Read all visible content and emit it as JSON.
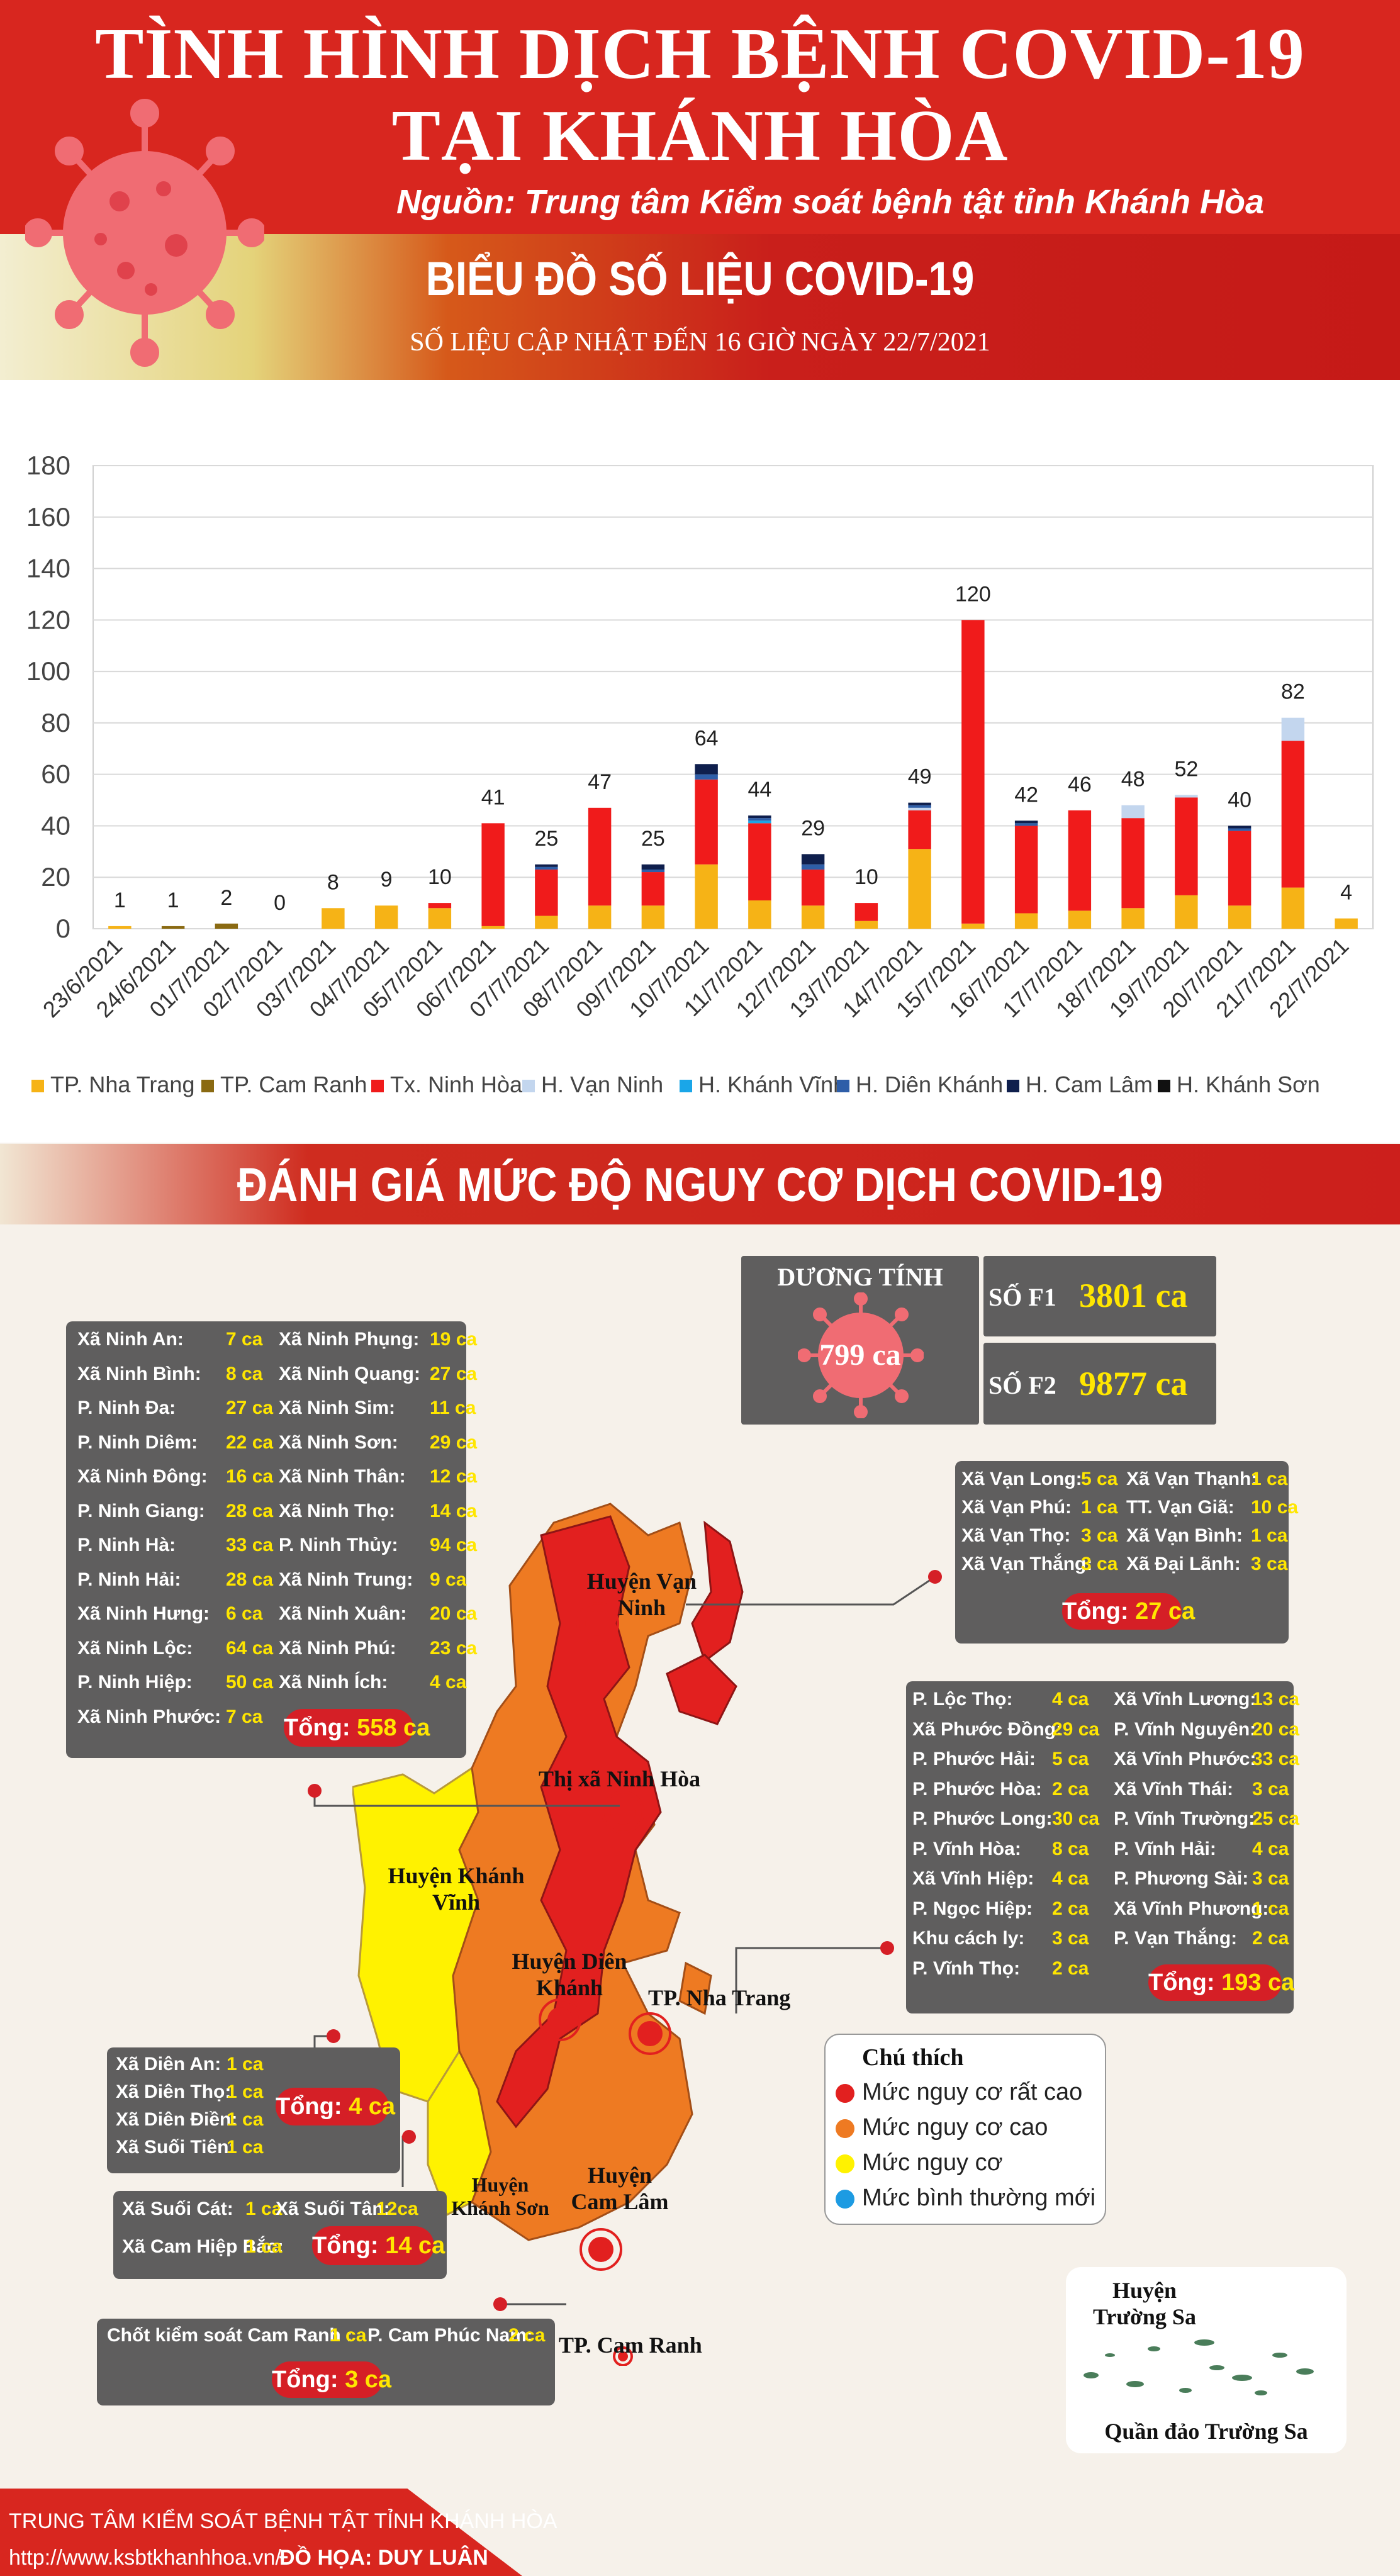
{
  "header": {
    "title_line1": "TÌNH HÌNH DỊCH BỆNH COVID-19",
    "title_line2": "TẠI KHÁNH HÒA",
    "source": "Nguồn: Trung tâm Kiểm soát bệnh tật tỉnh Khánh Hòa",
    "chart_heading": "BIỂU ĐỒ SỐ LIỆU COVID-19",
    "update_note": "SỐ LIỆU CẬP NHẬT ĐẾN 16 GIỜ NGÀY 22/7/2021"
  },
  "colors": {
    "nha_trang": "#f6b316",
    "cam_ranh": "#8a6a12",
    "ninh_hoa": "#f01b1b",
    "van_ninh": "#c3d6ee",
    "khanh_vinh": "#1aa6e8",
    "dien_khanh": "#2e5ea8",
    "cam_lam": "#0f1f4d",
    "khanh_son": "#111111",
    "very_high": "#e2201f",
    "high": "#ee7a22",
    "risk": "#fff200",
    "new_normal": "#1d9be2"
  },
  "chart_data": {
    "type": "bar",
    "stacked": true,
    "title": "BIỂU ĐỒ SỐ LIỆU COVID-19",
    "ylim": [
      0,
      180
    ],
    "yticks": [
      "0",
      "20",
      "40",
      "60",
      "80",
      "100",
      "120",
      "140",
      "160",
      "180"
    ],
    "grid": true,
    "legend_position": "bottom",
    "categories": [
      "23/6/2021",
      "24/6/2021",
      "01/7/2021",
      "02/7/2021",
      "03/7/2021",
      "04/7/2021",
      "05/7/2021",
      "06/7/2021",
      "07/7/2021",
      "08/7/2021",
      "09/7/2021",
      "10/7/2021",
      "11/7/2021",
      "12/7/2021",
      "13/7/2021",
      "14/7/2021",
      "15/7/2021",
      "16/7/2021",
      "17/7/2021",
      "18/7/2021",
      "19/7/2021",
      "20/7/2021",
      "21/7/2021",
      "22/7/2021"
    ],
    "totals": [
      "1",
      "1",
      "2",
      "0",
      "8",
      "9",
      "10",
      "41",
      "25",
      "47",
      "25",
      "64",
      "44",
      "29",
      "10",
      "49",
      "120",
      "42",
      "46",
      "48",
      "52",
      "40",
      "82",
      "4"
    ],
    "series": [
      {
        "name": "TP. Nha Trang",
        "color": "#f6b316",
        "values": [
          1,
          0,
          0,
          0,
          8,
          9,
          8,
          1,
          5,
          9,
          9,
          25,
          11,
          9,
          3,
          31,
          2,
          6,
          7,
          8,
          13,
          9,
          16,
          4
        ]
      },
      {
        "name": "TP. Cam Ranh",
        "color": "#8a6a12",
        "values": [
          0,
          1,
          2,
          0,
          0,
          0,
          0,
          0,
          0,
          0,
          0,
          0,
          0,
          0,
          0,
          0,
          0,
          0,
          0,
          0,
          0,
          0,
          0,
          0
        ]
      },
      {
        "name": "Tx. Ninh Hòa",
        "color": "#f01b1b",
        "values": [
          0,
          0,
          0,
          0,
          0,
          0,
          2,
          40,
          18,
          38,
          13,
          33,
          30,
          14,
          7,
          15,
          118,
          34,
          39,
          35,
          38,
          29,
          57,
          0
        ]
      },
      {
        "name": "H. Vạn Ninh",
        "color": "#c3d6ee",
        "values": [
          0,
          0,
          0,
          0,
          0,
          0,
          0,
          0,
          0,
          0,
          0,
          0,
          0,
          0,
          0,
          1,
          0,
          0,
          0,
          5,
          1,
          0,
          9,
          0
        ]
      },
      {
        "name": "H. Khánh Vĩnh",
        "color": "#1aa6e8",
        "values": [
          0,
          0,
          0,
          0,
          0,
          0,
          0,
          0,
          0,
          0,
          0,
          0,
          1,
          0,
          0,
          0,
          0,
          0,
          0,
          0,
          0,
          0,
          0,
          0
        ]
      },
      {
        "name": "H. Diên Khánh",
        "color": "#2e5ea8",
        "values": [
          0,
          0,
          0,
          0,
          0,
          0,
          0,
          0,
          1,
          0,
          1,
          2,
          1,
          2,
          0,
          1,
          0,
          1,
          0,
          0,
          0,
          1,
          0,
          0
        ]
      },
      {
        "name": "H. Cam Lâm",
        "color": "#0f1f4d",
        "values": [
          0,
          0,
          0,
          0,
          0,
          0,
          0,
          0,
          1,
          0,
          2,
          4,
          1,
          4,
          0,
          1,
          0,
          1,
          0,
          0,
          0,
          1,
          0,
          0
        ]
      },
      {
        "name": "H. Khánh Sơn",
        "color": "#111111",
        "values": [
          0,
          0,
          0,
          0,
          0,
          0,
          0,
          0,
          0,
          0,
          0,
          0,
          0,
          0,
          0,
          0,
          0,
          0,
          0,
          0,
          0,
          0,
          0,
          0
        ]
      }
    ]
  },
  "risk_section": {
    "heading": "ĐÁNH GIÁ MỨC ĐỘ NGUY CƠ DỊCH COVID-19",
    "positive_label": "DƯƠNG TÍNH",
    "positive_value": "799 ca",
    "f1_label": "SỐ F1",
    "f1_value": "3801 ca",
    "f2_label": "SỐ F2",
    "f2_value": "9877 ca",
    "ninh_hoa": {
      "total": "558 ca",
      "total_label": "Tổng:",
      "rows": [
        [
          "Xã Ninh An:",
          "7 ca",
          "Xã Ninh Phụng:",
          "19 ca"
        ],
        [
          "Xã Ninh Bình:",
          "8 ca",
          "Xã Ninh Quang:",
          "27 ca"
        ],
        [
          "P. Ninh Đa:",
          "27 ca",
          "Xã Ninh Sim:",
          "11 ca"
        ],
        [
          "P. Ninh Diêm:",
          "22 ca",
          "Xã Ninh Sơn:",
          "29 ca"
        ],
        [
          "Xã Ninh Đông:",
          "16 ca",
          "Xã Ninh Thân:",
          "12 ca"
        ],
        [
          "P. Ninh Giang:",
          "28 ca",
          "Xã Ninh Thọ:",
          "14 ca"
        ],
        [
          "P. Ninh Hà:",
          "33 ca",
          "P. Ninh Thủy:",
          "94 ca"
        ],
        [
          "P. Ninh Hải:",
          "28 ca",
          "Xã Ninh Trung:",
          "9 ca"
        ],
        [
          "Xã Ninh Hưng:",
          "6 ca",
          "Xã Ninh Xuân:",
          "20 ca"
        ],
        [
          "Xã Ninh Lộc:",
          "64 ca",
          "Xã Ninh Phú:",
          "23 ca"
        ],
        [
          "P. Ninh Hiệp:",
          "50 ca",
          "Xã Ninh Ích:",
          "4 ca"
        ],
        [
          "Xã Ninh Phước:",
          "7 ca",
          "",
          ""
        ]
      ]
    },
    "van_ninh": {
      "total": "27 ca",
      "total_label": "Tổng:",
      "rows": [
        [
          "Xã Vạn Long:",
          "5 ca",
          "Xã Vạn Thạnh:",
          "1 ca"
        ],
        [
          "Xã Vạn Phú:",
          "1 ca",
          "TT. Vạn Giã:",
          "10 ca"
        ],
        [
          "Xã Vạn Thọ:",
          "3 ca",
          "Xã Vạn Bình:",
          "1 ca"
        ],
        [
          "Xã Vạn Thắng:",
          "3 ca",
          "Xã Đại Lãnh:",
          "3 ca"
        ]
      ]
    },
    "nha_trang": {
      "total": "193 ca",
      "total_label": "Tổng:",
      "rows": [
        [
          "P. Lộc Thọ:",
          "4 ca",
          "Xã Vĩnh Lương:",
          "13 ca"
        ],
        [
          "Xã Phước Đồng:",
          "29 ca",
          "P. Vĩnh Nguyên:",
          "20 ca"
        ],
        [
          "P. Phước Hải:",
          "5 ca",
          "Xã Vĩnh Phước:",
          "33 ca"
        ],
        [
          "P. Phước Hòa:",
          "2 ca",
          "Xã Vĩnh Thái:",
          "3 ca"
        ],
        [
          "P. Phước Long:",
          "30 ca",
          "P. Vĩnh Trường:",
          "25 ca"
        ],
        [
          "P. Vĩnh Hòa:",
          "8 ca",
          "P. Vĩnh Hải:",
          "4 ca"
        ],
        [
          "Xã Vĩnh Hiệp:",
          "4 ca",
          "P. Phương Sài:",
          "3 ca"
        ],
        [
          "P. Ngọc Hiệp:",
          "2 ca",
          "Xã Vĩnh Phương:",
          "1 ca"
        ],
        [
          "Khu cách ly:",
          "3 ca",
          "P. Vạn Thắng:",
          "2 ca"
        ],
        [
          "P. Vĩnh Thọ:",
          "2 ca",
          "",
          ""
        ]
      ]
    },
    "dien_khanh": {
      "total": "4 ca",
      "total_label": "Tổng:",
      "rows": [
        [
          "Xã Diên An:",
          "1 ca"
        ],
        [
          "Xã Diên Thọ:",
          "1 ca"
        ],
        [
          "Xã Diên Điền:",
          "1 ca"
        ],
        [
          "Xã Suối Tiên:",
          "1 ca"
        ]
      ]
    },
    "cam_lam": {
      "total": "14 ca",
      "total_label": "Tổng:",
      "rows": [
        [
          "Xã Suối Cát:",
          "1 ca",
          "Xã Suối Tân:",
          "12ca"
        ],
        [
          "Xã Cam Hiệp Bắc:",
          "1 ca",
          "",
          ""
        ]
      ]
    },
    "cam_ranh": {
      "total": "3 ca",
      "total_label": "Tổng:",
      "rows": [
        [
          "Chốt kiểm soát Cam Ranh :",
          "1 ca",
          "P. Cam Phúc Nam:",
          "2 ca"
        ]
      ]
    },
    "map_labels": {
      "van_ninh": "Huyện Vạn Ninh",
      "ninh_hoa": "Thị xã Ninh Hòa",
      "khanh_vinh": "Huyện Khánh Vĩnh",
      "dien_khanh": "Huyện Diên Khánh",
      "nha_trang": "TP. Nha Trang",
      "khanh_son": "Huyện Khánh Sơn",
      "cam_lam": "Huyện Cam Lâm",
      "cam_ranh": "TP. Cam Ranh",
      "truong_sa": "Huyện Trường Sa",
      "truong_sa_islands": "Quần đảo Trường Sa"
    },
    "legend": {
      "title": "Chú thích",
      "items": [
        "Mức nguy cơ rất cao",
        "Mức nguy cơ cao",
        "Mức nguy cơ",
        "Mức bình thường mới"
      ]
    }
  },
  "footer": {
    "org": "TRUNG TÂM KIỂM SOÁT BỆNH TẬT TỈNH KHÁNH HÒA",
    "url": "http://www.ksbtkhanhhoa.vn/",
    "credit": "ĐỒ HỌA: DUY LUÂN"
  }
}
